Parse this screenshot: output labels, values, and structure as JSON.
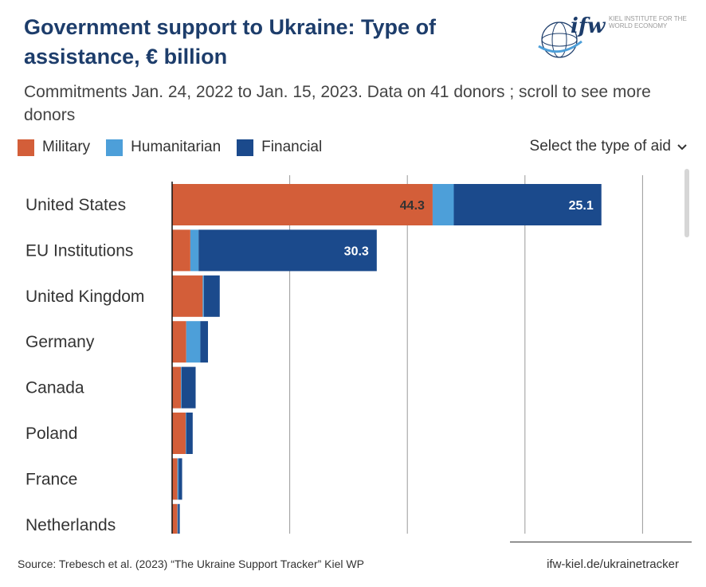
{
  "header": {
    "title": "Government support to Ukraine: Type of assistance, € billion",
    "subtitle": "Commitments Jan. 24, 2022 to Jan. 15, 2023. Data on 41 donors ; scroll to see more donors"
  },
  "logo": {
    "brand": "ifw",
    "tagline": "KIEL INSTITUTE FOR THE WORLD ECONOMY"
  },
  "legend": {
    "items": [
      {
        "label": "Military",
        "color": "#d35e39"
      },
      {
        "label": "Humanitarian",
        "color": "#4d9fd9"
      },
      {
        "label": "Financial",
        "color": "#1b4a8c"
      }
    ]
  },
  "controls": {
    "select_label": "Select the type of aid",
    "chevron_icon": "chevron-down-icon"
  },
  "chart_data": {
    "type": "bar",
    "orientation": "horizontal",
    "stacked": true,
    "title": "Government support to Ukraine: Type of assistance, € billion",
    "xlabel": "",
    "ylabel": "",
    "xlim": [
      0,
      80
    ],
    "gridlines": [
      0,
      20,
      40,
      60,
      80
    ],
    "grid": true,
    "categories": [
      "United States",
      "EU Institutions",
      "United Kingdom",
      "Germany",
      "Canada",
      "Poland",
      "France",
      "Netherlands"
    ],
    "series": [
      {
        "name": "Military",
        "color": "#d35e39",
        "values": [
          44.3,
          3.1,
          5.2,
          2.4,
          1.5,
          2.3,
          0.9,
          0.9
        ]
      },
      {
        "name": "Humanitarian",
        "color": "#4d9fd9",
        "values": [
          3.6,
          1.4,
          0.2,
          2.4,
          0.1,
          0.1,
          0.2,
          0.1
        ]
      },
      {
        "name": "Financial",
        "color": "#1b4a8c",
        "values": [
          25.1,
          30.3,
          2.7,
          1.3,
          2.4,
          1.1,
          0.6,
          0.3
        ]
      }
    ],
    "data_labels": [
      {
        "category": "United States",
        "series": "Military",
        "text": "44.3",
        "color": "#333333"
      },
      {
        "category": "United States",
        "series": "Financial",
        "text": "25.1",
        "color": "#ffffff"
      },
      {
        "category": "EU Institutions",
        "series": "Financial",
        "text": "30.3",
        "color": "#ffffff"
      }
    ]
  },
  "footer": {
    "source": "Source: Trebesch et al. (2023) “The Ukraine Support Tracker” Kiel WP",
    "link": "ifw-kiel.de/ukrainetracker"
  }
}
